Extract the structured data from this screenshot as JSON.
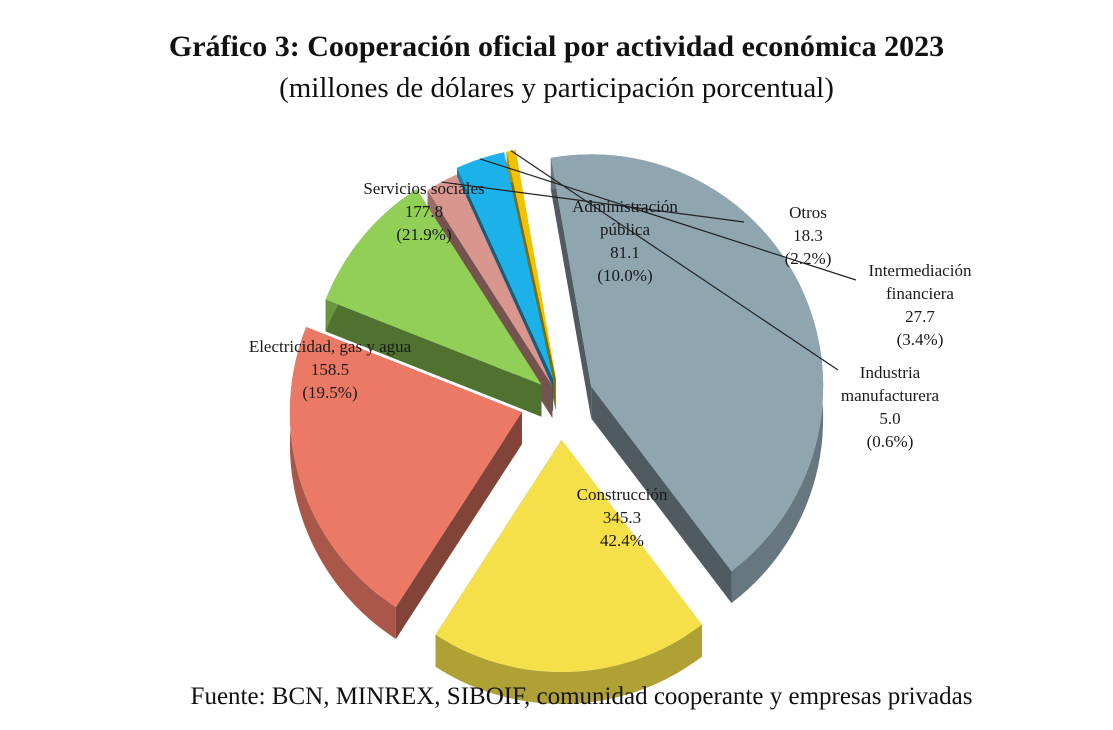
{
  "title": "Gráfico 3: Cooperación oficial por actividad económica 2023",
  "subtitle": "(millones de dólares y participación porcentual)",
  "source": "Fuente: BCN, MINREX, SIBOIF, comunidad cooperante y empresas privadas",
  "chart_data": {
    "type": "pie",
    "title": "Gráfico 3: Cooperación oficial por actividad económica 2023",
    "subtitle": "(millones de dólares y participación porcentual)",
    "legend": "none",
    "slices": [
      {
        "name": "Construcción",
        "value": 345.3,
        "value_label": "345.3",
        "percent": 42.4,
        "percent_label": "42.4%",
        "color": "#8fa5b0"
      },
      {
        "name": "Electricidad, gas y agua",
        "value": 158.5,
        "value_label": "158.5",
        "percent": 19.5,
        "percent_label": "(19.5%)",
        "color": "#f5e04a"
      },
      {
        "name": "Servicios sociales",
        "value": 177.8,
        "value_label": "177.8",
        "percent": 21.9,
        "percent_label": "(21.9%)",
        "color": "#ec7966"
      },
      {
        "name": "Administración pública",
        "value": 81.1,
        "value_label": "81.1",
        "percent": 10.0,
        "percent_label": "(10.0%)",
        "color": "#92cf56"
      },
      {
        "name": "Otros",
        "value": 18.3,
        "value_label": "18.3",
        "percent": 2.2,
        "percent_label": "(2.2%)",
        "color": "#d9968f"
      },
      {
        "name": "Intermediación financiera",
        "value": 27.7,
        "value_label": "27.7",
        "percent": 3.4,
        "percent_label": "(3.4%)",
        "color": "#1db1ea"
      },
      {
        "name": "Industria manufacturera",
        "value": 5.0,
        "value_label": "5.0",
        "percent": 0.6,
        "percent_label": "(0.6%)",
        "color": "#f2c200"
      }
    ]
  }
}
